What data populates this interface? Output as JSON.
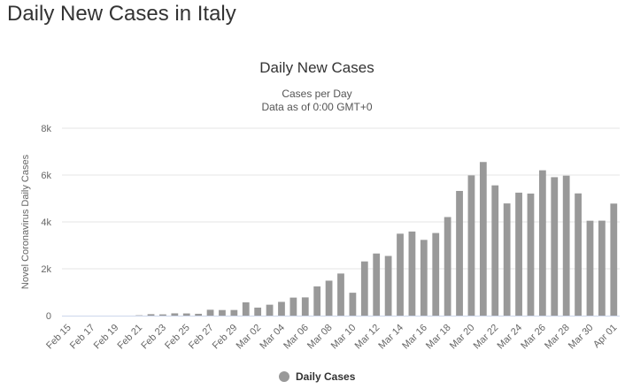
{
  "page": {
    "title": "Daily New Cases in Italy"
  },
  "chart_data": {
    "type": "bar",
    "title": "Daily New Cases",
    "subtitle": [
      "Cases per Day",
      "Data as of 0:00 GMT+0"
    ],
    "ylabel": "Novel Coronavirus Daily Cases",
    "xlabel": "",
    "ylim": [
      0,
      8000
    ],
    "yticks": [
      0,
      2000,
      4000,
      6000,
      8000
    ],
    "ytick_labels": [
      "0",
      "2k",
      "4k",
      "6k",
      "8k"
    ],
    "grid": true,
    "legend": {
      "placement": "bottom-center",
      "entries": [
        "Daily Cases"
      ]
    },
    "bar_color": "#999999",
    "categories": [
      "Feb 15",
      "Feb 16",
      "Feb 17",
      "Feb 18",
      "Feb 19",
      "Feb 20",
      "Feb 21",
      "Feb 22",
      "Feb 23",
      "Feb 24",
      "Feb 25",
      "Feb 26",
      "Feb 27",
      "Feb 28",
      "Feb 29",
      "Mar 01",
      "Mar 02",
      "Mar 03",
      "Mar 04",
      "Mar 05",
      "Mar 06",
      "Mar 07",
      "Mar 08",
      "Mar 09",
      "Mar 10",
      "Mar 11",
      "Mar 12",
      "Mar 13",
      "Mar 14",
      "Mar 15",
      "Mar 16",
      "Mar 17",
      "Mar 18",
      "Mar 19",
      "Mar 20",
      "Mar 21",
      "Mar 22",
      "Mar 23",
      "Mar 24",
      "Mar 25",
      "Mar 26",
      "Mar 27",
      "Mar 28",
      "Mar 29",
      "Mar 30",
      "Mar 31",
      "Apr 01"
    ],
    "visible_tick_labels": [
      "Feb 15",
      "Feb 17",
      "Feb 19",
      "Feb 21",
      "Feb 23",
      "Feb 25",
      "Feb 27",
      "Feb 29",
      "Mar 02",
      "Mar 04",
      "Mar 06",
      "Mar 08",
      "Mar 10",
      "Mar 12",
      "Mar 14",
      "Mar 16",
      "Mar 18",
      "Mar 20",
      "Mar 22",
      "Mar 24",
      "Mar 26",
      "Mar 28",
      "Mar 30",
      "Apr 01"
    ],
    "series": [
      {
        "name": "Daily Cases",
        "values": [
          0,
          0,
          0,
          0,
          0,
          0,
          14,
          62,
          53,
          97,
          93,
          78,
          250,
          238,
          240,
          566,
          342,
          466,
          587,
          769,
          778,
          1247,
          1492,
          1797,
          977,
          2313,
          2651,
          2547,
          3497,
          3590,
          3233,
          3526,
          4207,
          5322,
          5986,
          6557,
          5560,
          4789,
          5249,
          5210,
          6203,
          5909,
          5974,
          5217,
          4050,
          4053,
          4782
        ]
      }
    ]
  }
}
